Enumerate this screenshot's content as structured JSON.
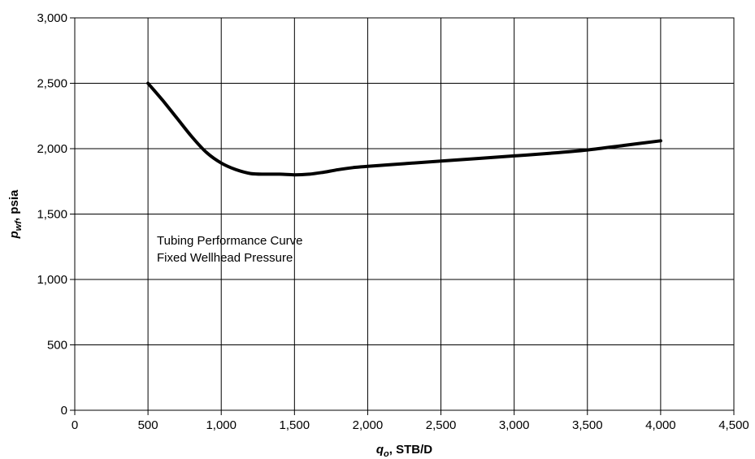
{
  "chart_data": {
    "type": "line",
    "title": "",
    "xlabel": {
      "main": "q",
      "sub": "o",
      "rest": ", STB/D"
    },
    "ylabel": {
      "main": "p",
      "sub": "wf",
      "rest": ", psia"
    },
    "xlim": [
      0,
      4500
    ],
    "ylim": [
      0,
      3000
    ],
    "x_ticks": [
      0,
      500,
      1000,
      1500,
      2000,
      2500,
      3000,
      3500,
      4000,
      4500
    ],
    "x_tick_labels": [
      "0",
      "500",
      "1,000",
      "1,500",
      "2,000",
      "2,500",
      "3,000",
      "3,500",
      "4,000",
      "4,500"
    ],
    "y_ticks": [
      0,
      500,
      1000,
      1500,
      2000,
      2500,
      3000
    ],
    "y_tick_labels": [
      "0",
      "500",
      "1,000",
      "1,500",
      "2,000",
      "2,500",
      "3,000"
    ],
    "grid": true,
    "series": [
      {
        "x": [
          500,
          600,
          700,
          800,
          900,
          1000,
          1100,
          1200,
          1300,
          1400,
          1500,
          1600,
          1700,
          1800,
          1900,
          2000,
          2250,
          2500,
          2750,
          3000,
          3250,
          3500,
          3750,
          4000
        ],
        "y": [
          2500,
          2370,
          2230,
          2090,
          1970,
          1890,
          1840,
          1810,
          1805,
          1805,
          1800,
          1805,
          1820,
          1840,
          1855,
          1865,
          1885,
          1905,
          1925,
          1945,
          1965,
          1990,
          2025,
          2060
        ]
      }
    ],
    "annotations": [
      "Tubing Performance Curve",
      "Fixed Wellhead Pressure"
    ]
  }
}
